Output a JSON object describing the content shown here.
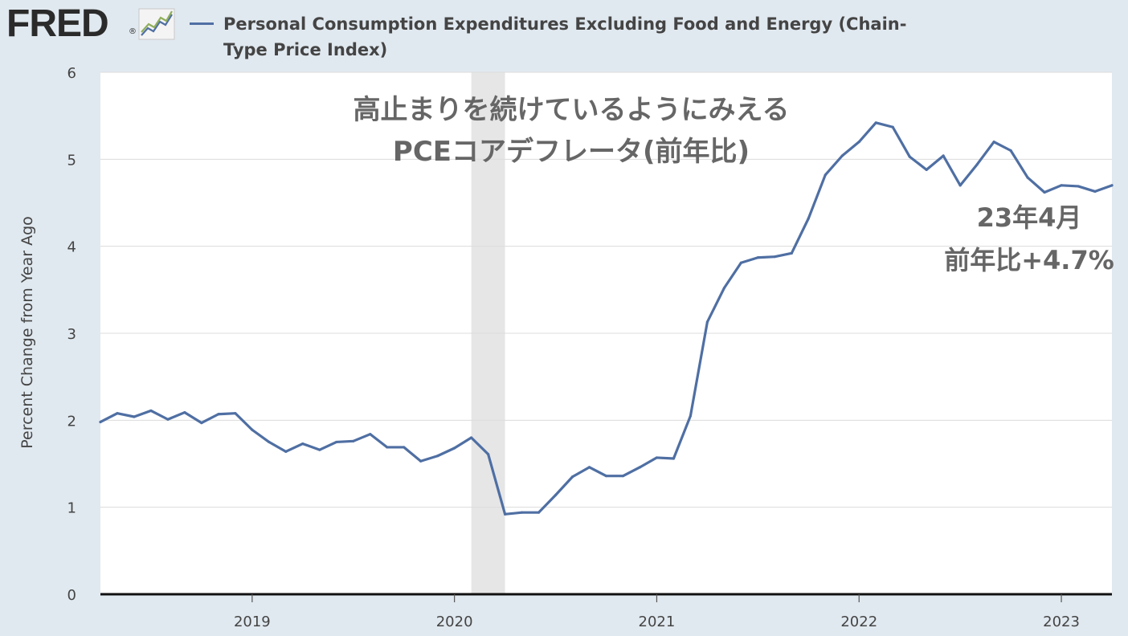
{
  "header": {
    "logo_text": "FRED",
    "logo_mark": "®",
    "logo_icon": "line-chart-icon",
    "series_title": "Personal Consumption Expenditures Excluding Food and Energy (Chain-Type Price Index)"
  },
  "colors": {
    "background": "#e1e9f0",
    "plot_background": "#ffffff",
    "series_line": "#4f6fa3",
    "recession_shade": "#e6e6e6",
    "annotation_text": "#666666"
  },
  "chart_data": {
    "type": "line",
    "title": "",
    "xlabel": "",
    "ylabel": "Percent Change from Year Ago",
    "ylim": [
      0,
      6
    ],
    "yticks": [
      0,
      1,
      2,
      3,
      4,
      5,
      6
    ],
    "xlim": [
      "2018-04",
      "2023-04"
    ],
    "xticks": [
      {
        "label": "2019",
        "date": "2019-01"
      },
      {
        "label": "2020",
        "date": "2020-01"
      },
      {
        "label": "2021",
        "date": "2021-01"
      },
      {
        "label": "2022",
        "date": "2022-01"
      },
      {
        "label": "2023",
        "date": "2023-01"
      }
    ],
    "grid": true,
    "recession": {
      "start": "2020-02",
      "end": "2020-04"
    },
    "series": [
      {
        "name": "Personal Consumption Expenditures Excluding Food and Energy (Chain-Type Price Index)",
        "points": [
          [
            "2018-04",
            1.98
          ],
          [
            "2018-05",
            2.08
          ],
          [
            "2018-06",
            2.04
          ],
          [
            "2018-07",
            2.11
          ],
          [
            "2018-08",
            2.01
          ],
          [
            "2018-09",
            2.09
          ],
          [
            "2018-10",
            1.97
          ],
          [
            "2018-11",
            2.07
          ],
          [
            "2018-12",
            2.08
          ],
          [
            "2019-01",
            1.89
          ],
          [
            "2019-02",
            1.75
          ],
          [
            "2019-03",
            1.64
          ],
          [
            "2019-04",
            1.73
          ],
          [
            "2019-05",
            1.66
          ],
          [
            "2019-06",
            1.75
          ],
          [
            "2019-07",
            1.76
          ],
          [
            "2019-08",
            1.84
          ],
          [
            "2019-09",
            1.69
          ],
          [
            "2019-10",
            1.69
          ],
          [
            "2019-11",
            1.53
          ],
          [
            "2019-12",
            1.59
          ],
          [
            "2020-01",
            1.68
          ],
          [
            "2020-02",
            1.8
          ],
          [
            "2020-03",
            1.61
          ],
          [
            "2020-04",
            0.92
          ],
          [
            "2020-05",
            0.94
          ],
          [
            "2020-06",
            0.94
          ],
          [
            "2020-07",
            1.14
          ],
          [
            "2020-08",
            1.35
          ],
          [
            "2020-09",
            1.46
          ],
          [
            "2020-10",
            1.36
          ],
          [
            "2020-11",
            1.36
          ],
          [
            "2020-12",
            1.46
          ],
          [
            "2021-01",
            1.57
          ],
          [
            "2021-02",
            1.56
          ],
          [
            "2021-03",
            2.05
          ],
          [
            "2021-04",
            3.13
          ],
          [
            "2021-05",
            3.52
          ],
          [
            "2021-06",
            3.81
          ],
          [
            "2021-07",
            3.87
          ],
          [
            "2021-08",
            3.88
          ],
          [
            "2021-09",
            3.92
          ],
          [
            "2021-10",
            4.32
          ],
          [
            "2021-11",
            4.82
          ],
          [
            "2021-12",
            5.04
          ],
          [
            "2022-01",
            5.2
          ],
          [
            "2022-02",
            5.42
          ],
          [
            "2022-03",
            5.37
          ],
          [
            "2022-04",
            5.03
          ],
          [
            "2022-05",
            4.88
          ],
          [
            "2022-06",
            5.04
          ],
          [
            "2022-07",
            4.7
          ],
          [
            "2022-08",
            4.94
          ],
          [
            "2022-09",
            5.2
          ],
          [
            "2022-10",
            5.1
          ],
          [
            "2022-11",
            4.79
          ],
          [
            "2022-12",
            4.62
          ],
          [
            "2023-01",
            4.7
          ],
          [
            "2023-02",
            4.69
          ],
          [
            "2023-03",
            4.63
          ],
          [
            "2023-04",
            4.7
          ]
        ]
      }
    ],
    "annotations": [
      {
        "id": "commentary-line-1",
        "text": "高止まりを続けているようにみえる"
      },
      {
        "id": "commentary-line-2",
        "text": "PCEコアデフレータ(前年比)"
      },
      {
        "id": "latest-label-line-1",
        "text": "23年4月"
      },
      {
        "id": "latest-label-line-2",
        "text": "前年比+4.7%"
      }
    ]
  }
}
